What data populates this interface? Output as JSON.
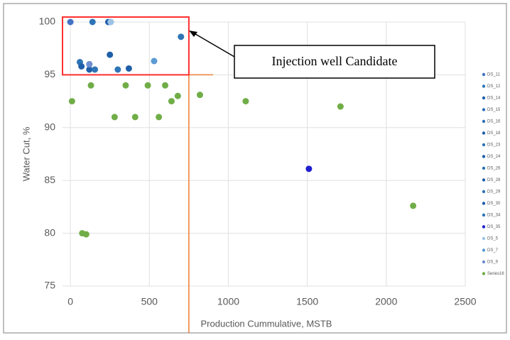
{
  "chart_data": {
    "type": "scatter",
    "x_label": "Production Cummulative, MSTB",
    "y_label": "Water Cut, %",
    "xlim": [
      -50,
      2500
    ],
    "ylim": [
      75,
      100
    ],
    "xticks": [
      0,
      500,
      1000,
      1500,
      2000,
      2500
    ],
    "yticks": [
      75,
      80,
      85,
      90,
      95,
      100
    ],
    "grid": true,
    "legend": "right",
    "annotation": "Injection well Candidate",
    "reference_lines": {
      "x": 750,
      "y": 95,
      "color": "#ed7d31"
    },
    "series": [
      {
        "name": "DS_11",
        "color": "#4472c4",
        "x": [
          0
        ],
        "values": [
          100
        ]
      },
      {
        "name": "DS_12",
        "color": "#2e75b6",
        "x": [
          140
        ],
        "values": [
          100
        ]
      },
      {
        "name": "DS_14",
        "color": "#1f5fa8",
        "x": [
          240
        ],
        "values": [
          100
        ]
      },
      {
        "name": "DS_15",
        "color": "#2f6eba",
        "x": [
          255
        ],
        "values": [
          100
        ]
      },
      {
        "name": "DS_16",
        "color": "#2e75b6",
        "x": [
          60
        ],
        "values": [
          96.2
        ]
      },
      {
        "name": "DS_18",
        "color": "#1f5fa8",
        "x": [
          70
        ],
        "values": [
          95.8
        ]
      },
      {
        "name": "DS_23",
        "color": "#2e75b6",
        "x": [
          120
        ],
        "values": [
          96
        ]
      },
      {
        "name": "DS_24",
        "color": "#1f5fa8",
        "x": [
          120
        ],
        "values": [
          95.5
        ]
      },
      {
        "name": "DS_26",
        "color": "#2e75b6",
        "x": [
          155
        ],
        "values": [
          95.5
        ]
      },
      {
        "name": "DS_28",
        "color": "#1f5fa8",
        "x": [
          250
        ],
        "values": [
          96.9
        ]
      },
      {
        "name": "DS_29",
        "color": "#2e75b6",
        "x": [
          300
        ],
        "values": [
          95.5
        ]
      },
      {
        "name": "DS_30",
        "color": "#1f5fa8",
        "x": [
          370
        ],
        "values": [
          95.6
        ]
      },
      {
        "name": "DS_34",
        "color": "#2e75b6",
        "x": [
          700
        ],
        "values": [
          98.6
        ]
      },
      {
        "name": "DS_35",
        "color": "#1f1fd0",
        "x": [
          1510
        ],
        "values": [
          86.1
        ]
      },
      {
        "name": "DS_5",
        "color": "#9dc3e6",
        "x": [
          255
        ],
        "values": [
          100
        ]
      },
      {
        "name": "DS_7",
        "color": "#5b9bd5",
        "x": [
          530
        ],
        "values": [
          96.3
        ]
      },
      {
        "name": "DS_9",
        "color": "#6f8fd0",
        "x": [
          120
        ],
        "values": [
          96
        ]
      },
      {
        "name": "Series16",
        "color": "#70ad47",
        "x": [
          10,
          75,
          100,
          130,
          280,
          350,
          410,
          490,
          560,
          600,
          640,
          680,
          820,
          1110,
          1710,
          2170
        ],
        "values": [
          92.5,
          80,
          79.9,
          94,
          91,
          94,
          91,
          94,
          91,
          94,
          92.5,
          93,
          93.1,
          92.5,
          92,
          82.6
        ]
      }
    ]
  }
}
